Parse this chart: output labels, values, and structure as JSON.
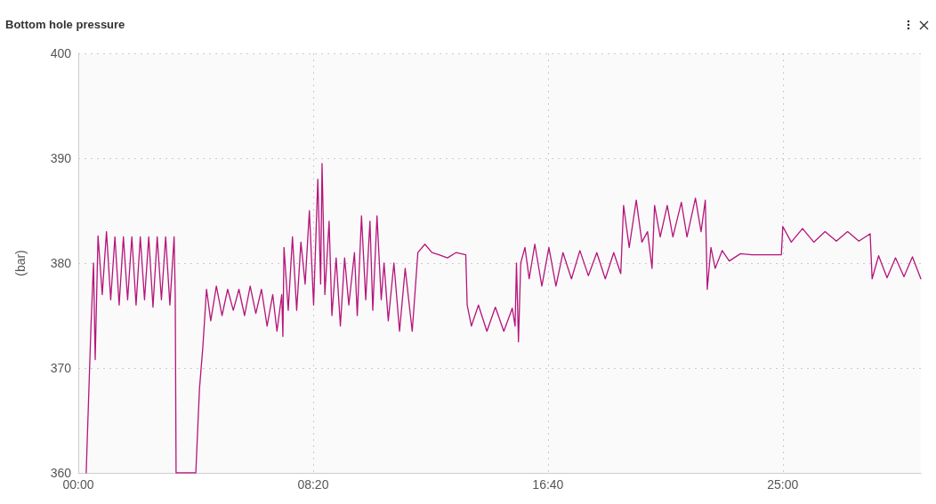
{
  "chart_data": {
    "type": "line",
    "title": "Bottom hole pressure",
    "ylabel": "(bar)",
    "xlim": [
      0,
      29.9
    ],
    "xticks": [
      {
        "value": 0,
        "label": "00:00"
      },
      {
        "value": 8.333,
        "label": "08:20"
      },
      {
        "value": 16.667,
        "label": "16:40"
      },
      {
        "value": 25,
        "label": "25:00"
      }
    ],
    "ylim": [
      360,
      400
    ],
    "yticks": [
      360,
      370,
      380,
      390,
      400
    ],
    "grid": true,
    "marker": "none",
    "line_style": "solid",
    "series": [
      {
        "color": "#b5147a",
        "x": [
          0.28,
          0.45,
          0.54,
          0.6,
          0.7,
          0.85,
          1.0,
          1.15,
          1.3,
          1.45,
          1.6,
          1.75,
          1.9,
          2.05,
          2.2,
          2.35,
          2.5,
          2.65,
          2.8,
          2.95,
          3.1,
          3.25,
          3.4,
          3.44,
          3.47,
          4.17,
          4.3,
          4.42,
          4.55,
          4.7,
          4.9,
          5.1,
          5.3,
          5.5,
          5.7,
          5.9,
          6.1,
          6.3,
          6.5,
          6.7,
          6.9,
          7.05,
          7.22,
          7.26,
          7.3,
          7.45,
          7.6,
          7.75,
          7.9,
          8.05,
          8.2,
          8.35,
          8.5,
          8.6,
          8.65,
          8.75,
          8.9,
          9.0,
          9.15,
          9.3,
          9.45,
          9.6,
          9.8,
          9.9,
          10.05,
          10.2,
          10.35,
          10.45,
          10.6,
          10.75,
          10.85,
          11.0,
          11.2,
          11.4,
          11.6,
          11.85,
          12.05,
          12.3,
          12.55,
          12.8,
          13.1,
          13.4,
          13.75,
          13.8,
          13.95,
          14.2,
          14.5,
          14.8,
          15.1,
          15.4,
          15.5,
          15.55,
          15.62,
          15.7,
          15.85,
          16.0,
          16.2,
          16.45,
          16.7,
          16.95,
          17.2,
          17.5,
          17.8,
          18.1,
          18.4,
          18.7,
          19.0,
          19.25,
          19.35,
          19.55,
          19.8,
          20.0,
          20.2,
          20.36,
          20.45,
          20.65,
          20.9,
          21.1,
          21.4,
          21.6,
          21.9,
          22.1,
          22.25,
          22.32,
          22.45,
          22.6,
          22.85,
          23.1,
          23.5,
          23.9,
          24.1,
          24.95,
          25.0,
          25.3,
          25.7,
          26.1,
          26.5,
          26.9,
          27.3,
          27.7,
          28.1,
          28.17,
          28.4,
          28.7,
          29.0,
          29.3,
          29.6,
          29.9
        ],
        "values": [
          360,
          374,
          380,
          370.8,
          382.6,
          377,
          383,
          376.5,
          382.5,
          376,
          382.5,
          376.5,
          382.5,
          376,
          382.5,
          376.5,
          382.5,
          375.8,
          382.5,
          376.5,
          382.5,
          376,
          382.5,
          377,
          360,
          360,
          368,
          372,
          377.5,
          374.5,
          377.8,
          375,
          377.5,
          375.5,
          377.5,
          375,
          377.8,
          375.2,
          377.5,
          374,
          377,
          373.5,
          377,
          373,
          381.5,
          375.5,
          382.5,
          375.5,
          382,
          378,
          385,
          376,
          388,
          378,
          389.5,
          377,
          384,
          375,
          380.5,
          374,
          380.5,
          376,
          381,
          375,
          384.5,
          376.5,
          384,
          375.5,
          384.5,
          376.5,
          380,
          374.5,
          380,
          373.5,
          379.5,
          373.5,
          381,
          381.8,
          381,
          380.8,
          380.5,
          381,
          380.8,
          376,
          374,
          376,
          373.5,
          375.8,
          373.5,
          375.7,
          374,
          380,
          372.5,
          380,
          381.5,
          378.5,
          381.8,
          377.8,
          381.5,
          377.8,
          381,
          378.5,
          381.2,
          378.8,
          381,
          378.5,
          381,
          379,
          385.5,
          381.5,
          386,
          382,
          383,
          379.5,
          385.5,
          382.5,
          385.5,
          382.5,
          385.8,
          382.5,
          386.2,
          383,
          386,
          377.5,
          381.5,
          379.5,
          381.2,
          380.2,
          380.9,
          380.8,
          380.8,
          380.8,
          383.5,
          382,
          383.3,
          382,
          383,
          382.1,
          383,
          382.1,
          382.8,
          378.5,
          380.7,
          378.6,
          380.5,
          378.7,
          380.6,
          378.5
        ]
      }
    ]
  }
}
